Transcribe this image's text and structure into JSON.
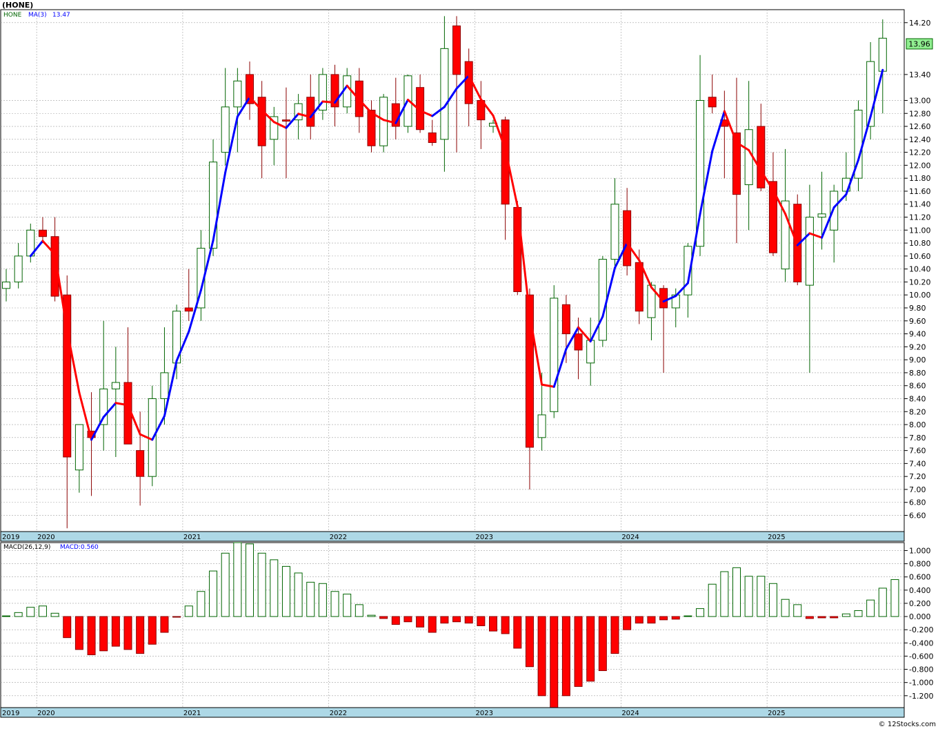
{
  "header": {
    "title": "(HONE)",
    "watermark": "© 12Stocks.com"
  },
  "colors": {
    "up": "#ffffff",
    "up_stroke": "#006400",
    "down": "#ff0000",
    "down_stroke": "#8b0000",
    "ma_up": "#0000ff",
    "ma_down": "#ff0000",
    "date_bar": "#add8e6",
    "price_tag_bg": "#90ee90"
  },
  "chart_data": [
    {
      "type": "candlestick",
      "panel": "price",
      "legend": {
        "symbol": "HONE",
        "ma_label": "MA(3)",
        "ma_value": "13.47"
      },
      "last_price": "13.96",
      "ylim": [
        6.35,
        14.4
      ],
      "y_ticks": [
        "14.20",
        "13.40",
        "13.00",
        "12.80",
        "12.60",
        "12.40",
        "12.20",
        "12.00",
        "11.80",
        "11.60",
        "11.40",
        "11.20",
        "11.00",
        "10.80",
        "10.60",
        "10.40",
        "10.20",
        "10.00",
        "9.80",
        "9.60",
        "9.40",
        "9.20",
        "9.00",
        "8.80",
        "8.60",
        "8.40",
        "8.20",
        "8.00",
        "7.80",
        "7.60",
        "7.40",
        "7.20",
        "7.00",
        "6.80",
        "6.60"
      ],
      "x_labels": [
        "2019",
        "2020",
        "2021",
        "2022",
        "2023",
        "2024",
        "2025"
      ],
      "x_label_months": [
        0,
        3,
        15,
        27,
        39,
        51,
        63
      ],
      "months": 73,
      "candles": [
        {
          "o": 10.1,
          "h": 10.4,
          "l": 9.9,
          "c": 10.2
        },
        {
          "o": 10.2,
          "h": 10.8,
          "l": 10.1,
          "c": 10.6
        },
        {
          "o": 10.6,
          "h": 11.1,
          "l": 10.5,
          "c": 11.0
        },
        {
          "o": 11.0,
          "h": 11.2,
          "l": 10.8,
          "c": 10.9
        },
        {
          "o": 10.9,
          "h": 11.2,
          "l": 9.9,
          "c": 9.98
        },
        {
          "o": 10.0,
          "h": 10.3,
          "l": 6.4,
          "c": 7.5
        },
        {
          "o": 7.3,
          "h": 8.0,
          "l": 6.95,
          "c": 8.0
        },
        {
          "o": 7.9,
          "h": 8.5,
          "l": 6.9,
          "c": 7.8
        },
        {
          "o": 8.0,
          "h": 9.6,
          "l": 7.6,
          "c": 8.55
        },
        {
          "o": 8.55,
          "h": 9.2,
          "l": 7.5,
          "c": 8.65
        },
        {
          "o": 8.65,
          "h": 9.5,
          "l": 7.7,
          "c": 7.7
        },
        {
          "o": 7.6,
          "h": 8.2,
          "l": 6.75,
          "c": 7.2
        },
        {
          "o": 7.2,
          "h": 8.6,
          "l": 7.05,
          "c": 8.4
        },
        {
          "o": 8.4,
          "h": 9.5,
          "l": 8.0,
          "c": 8.8
        },
        {
          "o": 8.95,
          "h": 9.85,
          "l": 8.7,
          "c": 9.75
        },
        {
          "o": 9.8,
          "h": 10.4,
          "l": 9.6,
          "c": 9.75
        },
        {
          "o": 9.8,
          "h": 11.0,
          "l": 9.6,
          "c": 10.72
        },
        {
          "o": 10.72,
          "h": 12.4,
          "l": 10.6,
          "c": 12.05
        },
        {
          "o": 12.2,
          "h": 13.5,
          "l": 12.0,
          "c": 12.9
        },
        {
          "o": 12.9,
          "h": 13.5,
          "l": 12.2,
          "c": 13.3
        },
        {
          "o": 13.4,
          "h": 13.6,
          "l": 12.7,
          "c": 12.95
        },
        {
          "o": 13.05,
          "h": 13.3,
          "l": 11.8,
          "c": 12.3
        },
        {
          "o": 12.4,
          "h": 12.9,
          "l": 12.0,
          "c": 12.75
        },
        {
          "o": 12.7,
          "h": 13.2,
          "l": 11.8,
          "c": 12.68
        },
        {
          "o": 12.7,
          "h": 13.1,
          "l": 12.4,
          "c": 12.95
        },
        {
          "o": 13.05,
          "h": 13.4,
          "l": 12.4,
          "c": 12.6
        },
        {
          "o": 12.85,
          "h": 13.5,
          "l": 12.7,
          "c": 13.4
        },
        {
          "o": 13.4,
          "h": 13.55,
          "l": 12.6,
          "c": 12.9
        },
        {
          "o": 12.9,
          "h": 13.5,
          "l": 12.8,
          "c": 13.38
        },
        {
          "o": 13.3,
          "h": 13.5,
          "l": 12.5,
          "c": 12.75
        },
        {
          "o": 12.85,
          "h": 13.0,
          "l": 12.2,
          "c": 12.3
        },
        {
          "o": 12.3,
          "h": 13.1,
          "l": 12.2,
          "c": 13.05
        },
        {
          "o": 12.95,
          "h": 13.35,
          "l": 12.4,
          "c": 12.6
        },
        {
          "o": 12.6,
          "h": 13.4,
          "l": 12.5,
          "c": 13.38
        },
        {
          "o": 13.2,
          "h": 13.4,
          "l": 12.5,
          "c": 12.55
        },
        {
          "o": 12.5,
          "h": 12.7,
          "l": 12.3,
          "c": 12.35
        },
        {
          "o": 12.4,
          "h": 14.3,
          "l": 11.9,
          "c": 13.8
        },
        {
          "o": 14.15,
          "h": 14.3,
          "l": 12.2,
          "c": 13.4
        },
        {
          "o": 13.6,
          "h": 13.8,
          "l": 12.6,
          "c": 12.95
        },
        {
          "o": 13.0,
          "h": 13.3,
          "l": 12.25,
          "c": 12.7
        },
        {
          "o": 12.6,
          "h": 12.7,
          "l": 12.5,
          "c": 12.65
        },
        {
          "o": 12.7,
          "h": 12.75,
          "l": 10.85,
          "c": 11.4
        },
        {
          "o": 11.35,
          "h": 11.45,
          "l": 10.0,
          "c": 10.05
        },
        {
          "o": 10.0,
          "h": 10.1,
          "l": 7.0,
          "c": 7.65
        },
        {
          "o": 7.8,
          "h": 8.8,
          "l": 7.6,
          "c": 8.15
        },
        {
          "o": 8.2,
          "h": 10.15,
          "l": 8.1,
          "c": 9.95
        },
        {
          "o": 9.85,
          "h": 10.0,
          "l": 8.95,
          "c": 9.4
        },
        {
          "o": 9.4,
          "h": 9.65,
          "l": 8.7,
          "c": 9.15
        },
        {
          "o": 8.95,
          "h": 9.65,
          "l": 8.6,
          "c": 9.3
        },
        {
          "o": 9.3,
          "h": 10.6,
          "l": 9.2,
          "c": 10.55
        },
        {
          "o": 10.55,
          "h": 11.8,
          "l": 10.4,
          "c": 11.4
        },
        {
          "o": 11.3,
          "h": 11.65,
          "l": 10.3,
          "c": 10.45
        },
        {
          "o": 10.5,
          "h": 10.7,
          "l": 9.55,
          "c": 9.75
        },
        {
          "o": 9.65,
          "h": 10.2,
          "l": 9.3,
          "c": 10.15
        },
        {
          "o": 10.1,
          "h": 10.15,
          "l": 8.8,
          "c": 9.8
        },
        {
          "o": 9.8,
          "h": 10.1,
          "l": 9.5,
          "c": 10.0
        },
        {
          "o": 10.0,
          "h": 10.8,
          "l": 9.65,
          "c": 10.75
        },
        {
          "o": 10.75,
          "h": 13.7,
          "l": 10.6,
          "c": 13.0
        },
        {
          "o": 13.05,
          "h": 13.4,
          "l": 12.8,
          "c": 12.9
        },
        {
          "o": 12.7,
          "h": 13.15,
          "l": 11.8,
          "c": 12.6
        },
        {
          "o": 12.5,
          "h": 13.35,
          "l": 10.8,
          "c": 11.55
        },
        {
          "o": 11.7,
          "h": 13.3,
          "l": 11.0,
          "c": 12.55
        },
        {
          "o": 12.6,
          "h": 12.95,
          "l": 11.6,
          "c": 11.65
        },
        {
          "o": 11.75,
          "h": 12.2,
          "l": 10.6,
          "c": 10.65
        },
        {
          "o": 10.4,
          "h": 12.25,
          "l": 10.2,
          "c": 11.45
        },
        {
          "o": 11.4,
          "h": 11.55,
          "l": 10.15,
          "c": 10.2
        },
        {
          "o": 10.15,
          "h": 11.7,
          "l": 8.8,
          "c": 11.2
        },
        {
          "o": 11.2,
          "h": 11.9,
          "l": 10.7,
          "c": 11.25
        },
        {
          "o": 11.0,
          "h": 11.7,
          "l": 10.5,
          "c": 11.6
        },
        {
          "o": 11.6,
          "h": 12.2,
          "l": 11.45,
          "c": 11.8
        },
        {
          "o": 11.8,
          "h": 13.0,
          "l": 11.6,
          "c": 12.85
        },
        {
          "o": 12.6,
          "h": 13.9,
          "l": 12.4,
          "c": 13.6
        },
        {
          "o": 13.45,
          "h": 14.25,
          "l": 12.8,
          "c": 13.96
        }
      ]
    },
    {
      "type": "bar",
      "panel": "macd",
      "legend": {
        "label": "MACD(26,12,9)",
        "value_label": "MACD:0.560"
      },
      "ylim": [
        -1.38,
        1.12
      ],
      "y_ticks": [
        "1.000",
        "0.800",
        "0.600",
        "0.400",
        "0.200",
        "0.000",
        "-0.200",
        "-0.400",
        "-0.600",
        "-0.800",
        "-1.000",
        "-1.200"
      ],
      "x_labels": [
        "2019",
        "2020",
        "2021",
        "2022",
        "2023",
        "2024",
        "2025"
      ],
      "x_label_months": [
        0,
        3,
        15,
        27,
        39,
        51,
        63
      ],
      "values": [
        0.01,
        0.06,
        0.14,
        0.16,
        0.05,
        -0.32,
        -0.5,
        -0.58,
        -0.52,
        -0.45,
        -0.5,
        -0.56,
        -0.42,
        -0.24,
        -0.01,
        0.16,
        0.38,
        0.69,
        0.96,
        1.12,
        1.1,
        0.96,
        0.86,
        0.76,
        0.66,
        0.52,
        0.5,
        0.38,
        0.34,
        0.18,
        0.02,
        -0.03,
        -0.12,
        -0.08,
        -0.16,
        -0.24,
        -0.1,
        -0.08,
        -0.1,
        -0.14,
        -0.22,
        -0.26,
        -0.48,
        -0.76,
        -1.2,
        -1.38,
        -1.2,
        -1.06,
        -0.98,
        -0.82,
        -0.56,
        -0.2,
        -0.1,
        -0.1,
        -0.05,
        -0.04,
        0.01,
        0.12,
        0.49,
        0.68,
        0.74,
        0.61,
        0.61,
        0.5,
        0.26,
        0.18,
        -0.03,
        -0.02,
        -0.02,
        0.04,
        0.09,
        0.25,
        0.43,
        0.56
      ]
    }
  ]
}
